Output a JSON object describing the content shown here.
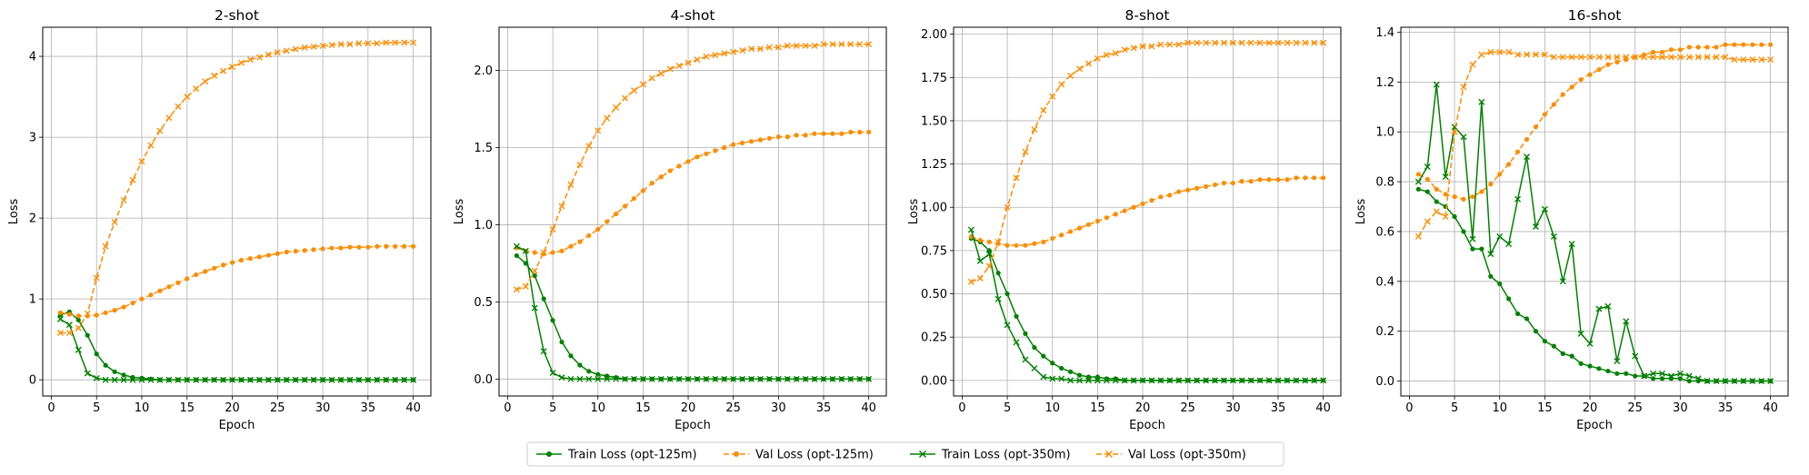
{
  "legend": [
    {
      "label": "Train Loss (opt-125m)",
      "color": "#008000",
      "marker": "circle",
      "dash": false
    },
    {
      "label": "Val Loss (opt-125m)",
      "color": "#ff8c00",
      "marker": "circle",
      "dash": true
    },
    {
      "label": "Train Loss (opt-350m)",
      "color": "#008000",
      "marker": "x",
      "dash": false
    },
    {
      "label": "Val Loss (opt-350m)",
      "color": "#ff8c00",
      "marker": "x",
      "dash": true
    }
  ],
  "chart_data": [
    {
      "type": "line",
      "title": "2-shot",
      "xlabel": "Epoch",
      "ylabel": "Loss",
      "xlim": [
        -0.95,
        41.95
      ],
      "ylim": [
        -0.2,
        4.36
      ],
      "xticks": [
        0,
        5,
        10,
        15,
        20,
        25,
        30,
        35,
        40
      ],
      "yticks": [
        0,
        1,
        2,
        3,
        4
      ],
      "ytick_labels": [
        "0",
        "1",
        "2",
        "3",
        "4"
      ],
      "grid": true,
      "series": [
        {
          "name": "Train Loss (opt-125m)",
          "values": [
            0.8,
            0.84,
            0.74,
            0.55,
            0.32,
            0.18,
            0.1,
            0.06,
            0.03,
            0.02,
            0.01,
            0,
            0,
            0,
            0,
            0,
            0,
            0,
            0,
            0,
            0,
            0,
            0,
            0,
            0,
            0,
            0,
            0,
            0,
            0,
            0,
            0,
            0,
            0,
            0,
            0,
            0,
            0,
            0,
            0
          ]
        },
        {
          "name": "Val Loss (opt-125m)",
          "values": [
            0.83,
            0.81,
            0.79,
            0.79,
            0.8,
            0.83,
            0.86,
            0.9,
            0.95,
            1,
            1.05,
            1.1,
            1.15,
            1.2,
            1.25,
            1.3,
            1.34,
            1.38,
            1.42,
            1.45,
            1.48,
            1.5,
            1.52,
            1.54,
            1.56,
            1.58,
            1.59,
            1.6,
            1.61,
            1.62,
            1.63,
            1.63,
            1.64,
            1.64,
            1.64,
            1.65,
            1.65,
            1.65,
            1.65,
            1.65
          ]
        },
        {
          "name": "Train Loss (opt-350m)",
          "values": [
            0.75,
            0.68,
            0.37,
            0.08,
            0.02,
            0,
            0,
            0,
            0,
            0,
            0,
            0,
            0,
            0,
            0,
            0,
            0,
            0,
            0,
            0,
            0,
            0,
            0,
            0,
            0,
            0,
            0,
            0,
            0,
            0,
            0,
            0,
            0,
            0,
            0,
            0,
            0,
            0,
            0,
            0
          ]
        },
        {
          "name": "Val Loss (opt-350m)",
          "values": [
            0.58,
            0.58,
            0.64,
            0.82,
            1.26,
            1.65,
            1.95,
            2.22,
            2.47,
            2.7,
            2.9,
            3.08,
            3.24,
            3.38,
            3.5,
            3.6,
            3.69,
            3.76,
            3.82,
            3.87,
            3.92,
            3.96,
            3.99,
            4.02,
            4.05,
            4.07,
            4.09,
            4.11,
            4.12,
            4.13,
            4.14,
            4.15,
            4.15,
            4.16,
            4.16,
            4.16,
            4.17,
            4.17,
            4.17,
            4.17
          ]
        }
      ]
    },
    {
      "type": "line",
      "title": "4-shot",
      "xlabel": "Epoch",
      "ylabel": "Loss",
      "xlim": [
        -0.95,
        41.95
      ],
      "ylim": [
        -0.11,
        2.28
      ],
      "xticks": [
        0,
        5,
        10,
        15,
        20,
        25,
        30,
        35,
        40
      ],
      "yticks": [
        0,
        0.5,
        1,
        1.5,
        2
      ],
      "ytick_labels": [
        "0.0",
        "0.5",
        "1.0",
        "1.5",
        "2.0"
      ],
      "grid": true,
      "series": [
        {
          "name": "Train Loss (opt-125m)",
          "values": [
            0.8,
            0.75,
            0.67,
            0.52,
            0.38,
            0.24,
            0.15,
            0.09,
            0.05,
            0.03,
            0.02,
            0.01,
            0,
            0,
            0,
            0,
            0,
            0,
            0,
            0,
            0,
            0,
            0,
            0,
            0,
            0,
            0,
            0,
            0,
            0,
            0,
            0,
            0,
            0,
            0,
            0,
            0,
            0,
            0,
            0
          ]
        },
        {
          "name": "Val Loss (opt-125m)",
          "values": [
            0.85,
            0.83,
            0.82,
            0.81,
            0.82,
            0.83,
            0.86,
            0.89,
            0.93,
            0.97,
            1.02,
            1.07,
            1.12,
            1.17,
            1.22,
            1.27,
            1.31,
            1.35,
            1.38,
            1.41,
            1.44,
            1.46,
            1.48,
            1.5,
            1.52,
            1.53,
            1.54,
            1.55,
            1.56,
            1.57,
            1.57,
            1.58,
            1.58,
            1.59,
            1.59,
            1.59,
            1.59,
            1.6,
            1.6,
            1.6
          ]
        },
        {
          "name": "Train Loss (opt-350m)",
          "values": [
            0.86,
            0.83,
            0.46,
            0.18,
            0.04,
            0.01,
            0,
            0,
            0,
            0,
            0,
            0,
            0,
            0,
            0,
            0,
            0,
            0,
            0,
            0,
            0,
            0,
            0,
            0,
            0,
            0,
            0,
            0,
            0,
            0,
            0,
            0,
            0,
            0,
            0,
            0,
            0,
            0,
            0,
            0
          ]
        },
        {
          "name": "Val Loss (opt-350m)",
          "values": [
            0.58,
            0.6,
            0.7,
            0.82,
            0.97,
            1.12,
            1.26,
            1.39,
            1.51,
            1.61,
            1.69,
            1.76,
            1.82,
            1.87,
            1.91,
            1.95,
            1.98,
            2.01,
            2.03,
            2.05,
            2.07,
            2.09,
            2.1,
            2.11,
            2.12,
            2.13,
            2.14,
            2.14,
            2.15,
            2.15,
            2.16,
            2.16,
            2.16,
            2.16,
            2.17,
            2.17,
            2.17,
            2.17,
            2.17,
            2.17
          ]
        }
      ]
    },
    {
      "type": "line",
      "title": "8-shot",
      "xlabel": "Epoch",
      "ylabel": "Loss",
      "xlim": [
        -0.95,
        41.95
      ],
      "ylim": [
        -0.09,
        2.04
      ],
      "xticks": [
        0,
        5,
        10,
        15,
        20,
        25,
        30,
        35,
        40
      ],
      "yticks": [
        0,
        0.25,
        0.5,
        0.75,
        1,
        1.25,
        1.5,
        1.75,
        2
      ],
      "ytick_labels": [
        "0.00",
        "0.25",
        "0.50",
        "0.75",
        "1.00",
        "1.25",
        "1.50",
        "1.75",
        "2.00"
      ],
      "grid": true,
      "series": [
        {
          "name": "Train Loss (opt-125m)",
          "values": [
            0.82,
            0.8,
            0.75,
            0.62,
            0.5,
            0.37,
            0.27,
            0.19,
            0.14,
            0.1,
            0.07,
            0.05,
            0.03,
            0.02,
            0.02,
            0.01,
            0.01,
            0,
            0,
            0,
            0,
            0,
            0,
            0,
            0,
            0,
            0,
            0,
            0,
            0,
            0,
            0,
            0,
            0,
            0,
            0,
            0,
            0,
            0,
            0
          ]
        },
        {
          "name": "Val Loss (opt-125m)",
          "values": [
            0.83,
            0.81,
            0.8,
            0.79,
            0.78,
            0.78,
            0.78,
            0.79,
            0.8,
            0.82,
            0.84,
            0.86,
            0.88,
            0.9,
            0.92,
            0.94,
            0.96,
            0.98,
            1,
            1.02,
            1.04,
            1.06,
            1.07,
            1.09,
            1.1,
            1.11,
            1.12,
            1.13,
            1.14,
            1.14,
            1.15,
            1.15,
            1.16,
            1.16,
            1.16,
            1.16,
            1.17,
            1.17,
            1.17,
            1.17
          ]
        },
        {
          "name": "Train Loss (opt-350m)",
          "values": [
            0.87,
            0.69,
            0.73,
            0.47,
            0.32,
            0.22,
            0.12,
            0.07,
            0.02,
            0.01,
            0.01,
            0,
            0,
            0,
            0,
            0,
            0,
            0,
            0,
            0,
            0,
            0,
            0,
            0,
            0,
            0,
            0,
            0,
            0,
            0,
            0,
            0,
            0,
            0,
            0,
            0,
            0,
            0,
            0,
            0
          ]
        },
        {
          "name": "Val Loss (opt-350m)",
          "values": [
            0.57,
            0.59,
            0.66,
            0.8,
            1,
            1.17,
            1.32,
            1.45,
            1.56,
            1.64,
            1.71,
            1.76,
            1.8,
            1.83,
            1.86,
            1.88,
            1.89,
            1.91,
            1.92,
            1.93,
            1.93,
            1.94,
            1.94,
            1.94,
            1.95,
            1.95,
            1.95,
            1.95,
            1.95,
            1.95,
            1.95,
            1.95,
            1.95,
            1.95,
            1.95,
            1.95,
            1.95,
            1.95,
            1.95,
            1.95
          ]
        }
      ]
    },
    {
      "type": "line",
      "title": "16-shot",
      "xlabel": "Epoch",
      "ylabel": "Loss",
      "xlim": [
        -0.95,
        41.95
      ],
      "ylim": [
        -0.06,
        1.42
      ],
      "xticks": [
        0,
        5,
        10,
        15,
        20,
        25,
        30,
        35,
        40
      ],
      "yticks": [
        0,
        0.2,
        0.4,
        0.6,
        0.8,
        1,
        1.2,
        1.4
      ],
      "ytick_labels": [
        "0.0",
        "0.2",
        "0.4",
        "0.6",
        "0.8",
        "1.0",
        "1.2",
        "1.4"
      ],
      "grid": true,
      "series": [
        {
          "name": "Train Loss (opt-125m)",
          "values": [
            0.77,
            0.76,
            0.72,
            0.7,
            0.66,
            0.6,
            0.53,
            0.53,
            0.42,
            0.39,
            0.33,
            0.27,
            0.25,
            0.2,
            0.16,
            0.14,
            0.11,
            0.1,
            0.07,
            0.06,
            0.05,
            0.04,
            0.03,
            0.03,
            0.02,
            0.02,
            0.01,
            0.01,
            0.01,
            0.01,
            0,
            0,
            0,
            0,
            0,
            0,
            0,
            0,
            0,
            0
          ]
        },
        {
          "name": "Val Loss (opt-125m)",
          "values": [
            0.83,
            0.81,
            0.77,
            0.75,
            0.74,
            0.73,
            0.74,
            0.76,
            0.79,
            0.83,
            0.87,
            0.92,
            0.97,
            1.02,
            1.07,
            1.11,
            1.15,
            1.18,
            1.21,
            1.23,
            1.25,
            1.27,
            1.28,
            1.29,
            1.3,
            1.31,
            1.32,
            1.32,
            1.33,
            1.33,
            1.34,
            1.34,
            1.34,
            1.34,
            1.35,
            1.35,
            1.35,
            1.35,
            1.35,
            1.35
          ]
        },
        {
          "name": "Train Loss (opt-350m)",
          "values": [
            0.8,
            0.86,
            1.19,
            0.82,
            1.02,
            0.98,
            0.57,
            1.12,
            0.51,
            0.58,
            0.55,
            0.73,
            0.9,
            0.62,
            0.69,
            0.58,
            0.4,
            0.55,
            0.19,
            0.15,
            0.29,
            0.3,
            0.08,
            0.24,
            0.1,
            0.02,
            0.03,
            0.03,
            0.02,
            0.03,
            0.02,
            0.01,
            0,
            0,
            0,
            0,
            0,
            0,
            0,
            0
          ]
        },
        {
          "name": "Val Loss (opt-350m)",
          "values": [
            0.58,
            0.64,
            0.68,
            0.66,
            1,
            1.18,
            1.27,
            1.31,
            1.32,
            1.32,
            1.32,
            1.31,
            1.31,
            1.31,
            1.31,
            1.3,
            1.3,
            1.3,
            1.3,
            1.3,
            1.3,
            1.3,
            1.3,
            1.3,
            1.3,
            1.3,
            1.3,
            1.3,
            1.3,
            1.3,
            1.3,
            1.3,
            1.3,
            1.3,
            1.3,
            1.29,
            1.29,
            1.29,
            1.29,
            1.29
          ]
        }
      ]
    }
  ]
}
